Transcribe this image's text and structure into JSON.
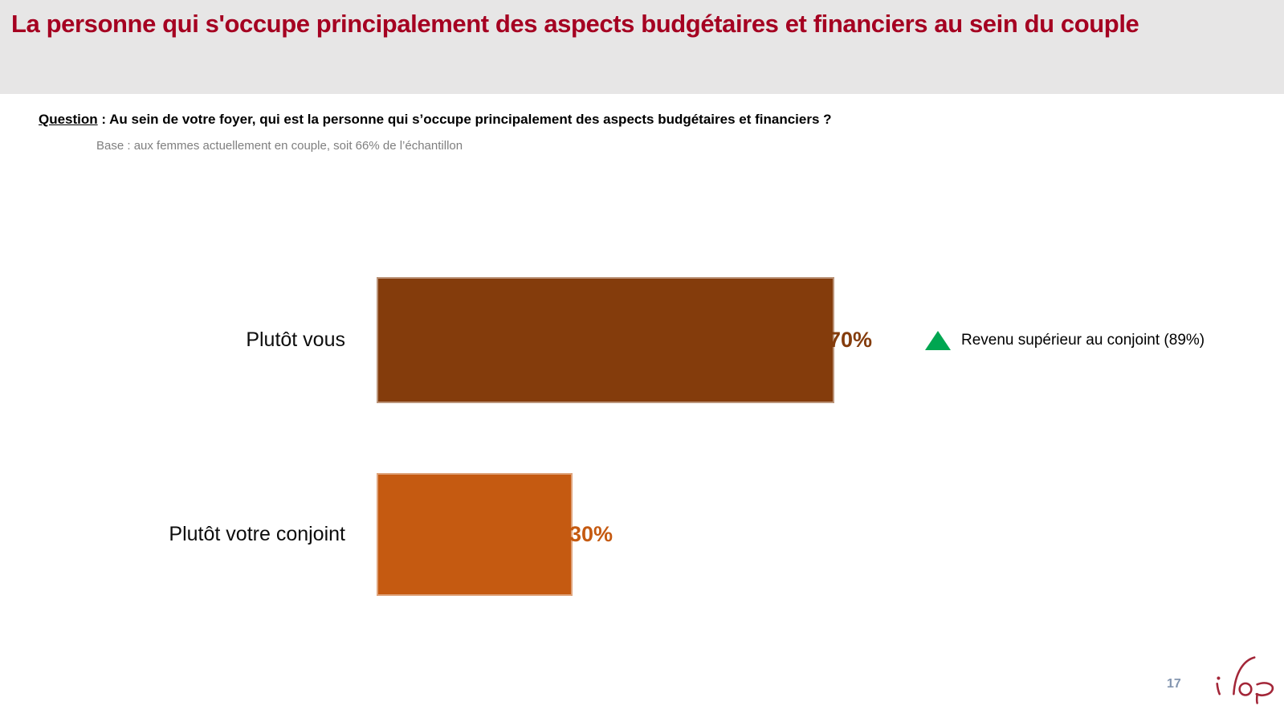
{
  "slide": {
    "title": "La personne qui s'occupe principalement des aspects budgétaires et financiers au sein du couple",
    "question_label": "Question",
    "question_separator": " :  ",
    "question_text": "Au sein de votre foyer, qui est la personne qui s’occupe principalement des aspects budgétaires et financiers ?",
    "base_text": "Base : aux femmes actuellement en couple, soit 66% de l’échantillon",
    "page_number": "17",
    "logo_text": "ifop"
  },
  "colors": {
    "header_bg": "#E7E6E6",
    "title_red": "#A50021",
    "base_gray": "#7F7F7F",
    "page_number_blue_gray": "#8496B0",
    "logo_red": "#A32638"
  },
  "chart_data": {
    "type": "bar",
    "orientation": "horizontal",
    "title": "",
    "categories": [
      "Plutôt vous",
      "Plutôt votre conjoint"
    ],
    "values": [
      70,
      30
    ],
    "value_labels": [
      "70%",
      "30%"
    ],
    "bar_colors": [
      "#843C0C",
      "#C55A11"
    ],
    "xlim": [
      0,
      100
    ],
    "grid": false,
    "axes_visible": false,
    "legend": null,
    "annotations": [
      {
        "category": "Plutôt vous",
        "marker": "triangle-up",
        "marker_color": "#00A651",
        "text": "Revenu supérieur au conjoint (89%)"
      }
    ]
  }
}
